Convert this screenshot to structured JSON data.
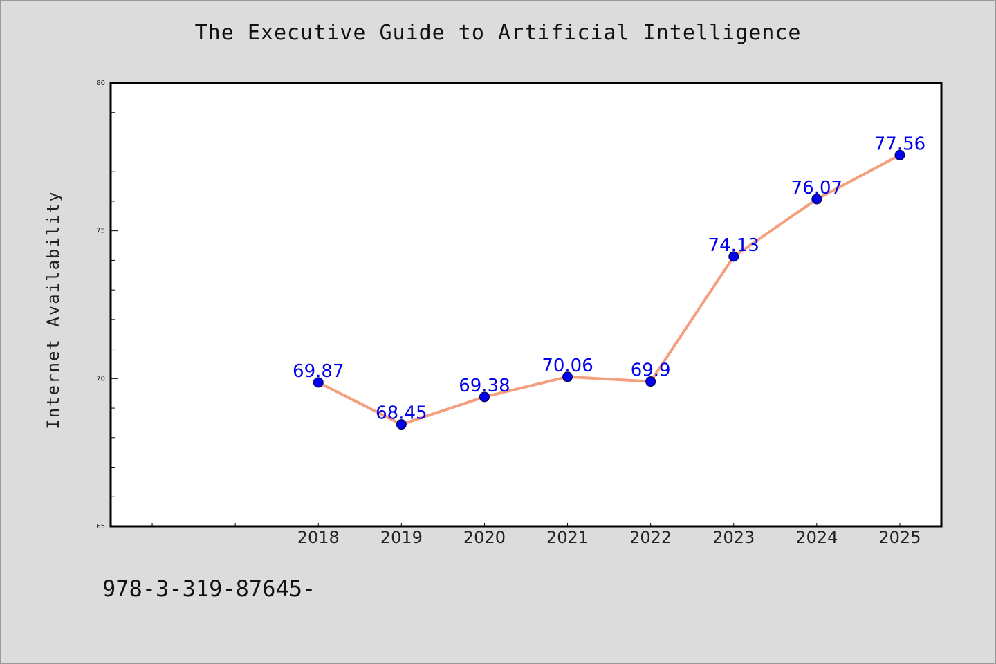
{
  "title": "The Executive Guide to Artificial Intelligence",
  "footer_text": "978-3-319-87645-",
  "chart_data": {
    "type": "line",
    "title": "The Executive Guide to Artificial Intelligence",
    "xlabel": "",
    "ylabel": "Internet Availability",
    "x": [
      "2018",
      "2019",
      "2020",
      "2021",
      "2022",
      "2023",
      "2024",
      "2025"
    ],
    "x_range": [
      2015.5,
      2025.5
    ],
    "series": [
      {
        "values": [
          69.87,
          68.45,
          69.38,
          70.06,
          69.9,
          74.13,
          76.07,
          77.56
        ],
        "data_labels": [
          "69.87",
          "68.45",
          "69.38",
          "70.06",
          "69.9",
          "74.13",
          "76.07",
          "77.56"
        ]
      }
    ],
    "ylim": [
      65,
      80
    ],
    "y_ticks": [
      "65",
      "70",
      "75",
      "80"
    ],
    "grid": false,
    "line_color": "#f4a07f",
    "marker_color": "#0000ee",
    "label_color": "#0000ee"
  }
}
